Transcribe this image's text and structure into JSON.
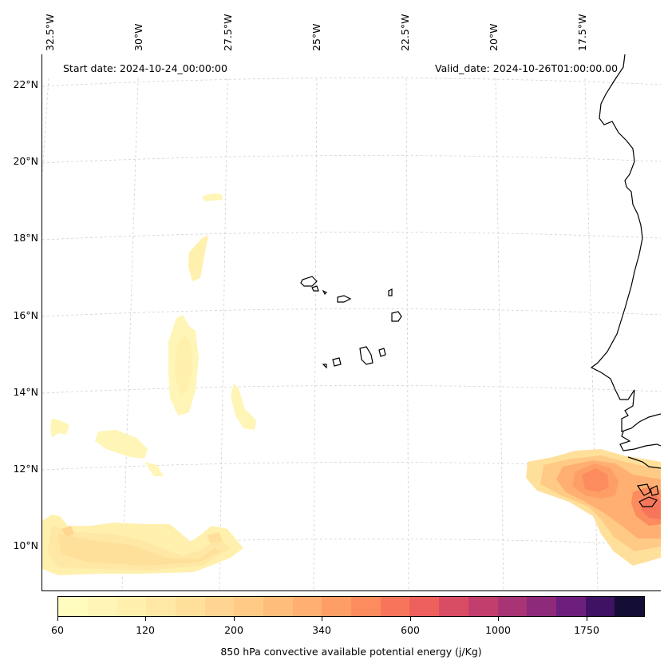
{
  "header": {
    "start_date": "Start date: 2024-10-24_00:00:00",
    "valid_date": "Valid_date: 2024-10-26T01:00:00.00"
  },
  "axes": {
    "lon_labels": [
      "32.5°W",
      "30°W",
      "27.5°W",
      "25°W",
      "22.5°W",
      "20°W",
      "17.5°W"
    ],
    "lat_labels": [
      "22°N",
      "20°N",
      "18°N",
      "16°N",
      "14°N",
      "12°N",
      "10°N"
    ]
  },
  "colorbar": {
    "title": "850 hPa convective available potential energy (j/Kg)",
    "tick_labels": [
      "60",
      "120",
      "200",
      "340",
      "600",
      "1000",
      "1750"
    ],
    "colors": [
      "#fffcbd",
      "#fff5b6",
      "#fff0ae",
      "#ffe8a5",
      "#ffe09b",
      "#ffd591",
      "#ffca86",
      "#ffbd7c",
      "#feaf71",
      "#fe9e67",
      "#fc8c5e",
      "#f7765b",
      "#ed605d",
      "#d94d64",
      "#c23e6d",
      "#a83475",
      "#8d2a7a",
      "#6c1f7c",
      "#3f1263",
      "#140e36"
    ]
  },
  "map": {
    "gridlines": true,
    "features": [
      "coastline",
      "cape-verde-islands",
      "cape-cape-verde-coast"
    ],
    "cape_field": "shaded-contours"
  }
}
